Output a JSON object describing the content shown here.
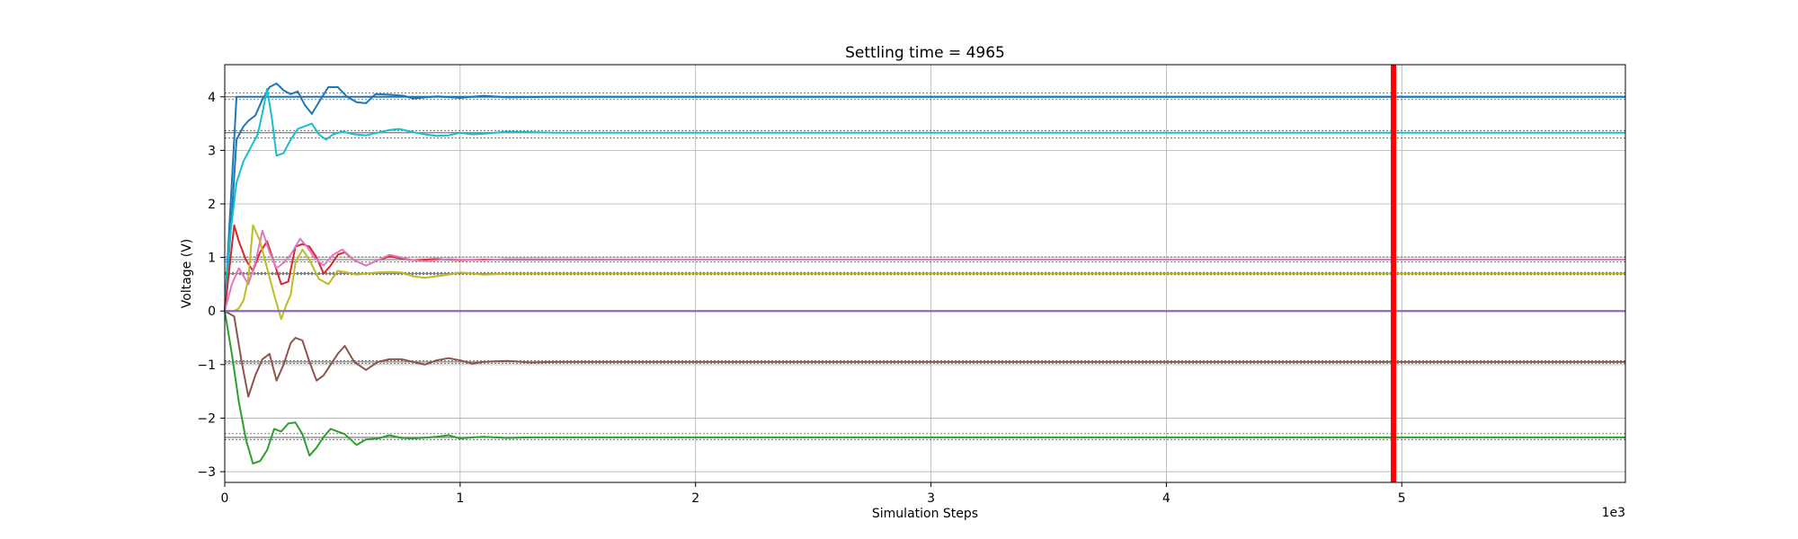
{
  "chart_data": {
    "type": "line",
    "title": "Settling time = 4965",
    "xlabel": "Simulation Steps",
    "ylabel": "Voltage (V)",
    "x_offset_label": "1e3",
    "xlim": [
      0,
      5950
    ],
    "ylim": [
      -3.2,
      4.6
    ],
    "x_ticks": [
      0,
      1000,
      2000,
      3000,
      4000,
      5000
    ],
    "x_tick_labels": [
      "0",
      "1",
      "2",
      "3",
      "4",
      "5"
    ],
    "y_ticks": [
      -3,
      -2,
      -1,
      0,
      1,
      2,
      3,
      4
    ],
    "y_tick_labels": [
      "−3",
      "−2",
      "−1",
      "0",
      "1",
      "2",
      "3",
      "4"
    ],
    "grid": true,
    "settling_time": 4965,
    "settling_color": "#ff0000",
    "reference_lines": [
      4.0,
      3.33,
      0.96,
      0.7,
      0.0,
      -0.95,
      -2.36
    ],
    "tolerance_bands": [
      [
        3.95,
        4.07
      ],
      [
        3.23,
        3.37
      ],
      [
        0.92,
        1.01
      ],
      [
        0.68,
        0.72
      ],
      [
        -0.98,
        -0.93
      ],
      [
        -2.4,
        -2.29
      ]
    ],
    "series": [
      {
        "color": "#1f77b4",
        "x": [
          0,
          30,
          50,
          80,
          100,
          130,
          160,
          190,
          220,
          250,
          280,
          310,
          340,
          370,
          400,
          440,
          480,
          520,
          560,
          600,
          640,
          700,
          760,
          800,
          900,
          1000,
          1100,
          1200,
          1400,
          1600,
          2000,
          3000,
          4000,
          5000,
          5950
        ],
        "values": [
          0,
          1.8,
          3.2,
          3.45,
          3.55,
          3.65,
          3.95,
          4.18,
          4.25,
          4.12,
          4.05,
          4.1,
          3.85,
          3.68,
          3.9,
          4.18,
          4.18,
          4.0,
          3.9,
          3.88,
          4.05,
          4.04,
          4.02,
          3.97,
          4.01,
          3.98,
          4.02,
          3.99,
          4.0,
          4.0,
          4.0,
          4.0,
          4.0,
          4.0,
          4.0
        ]
      },
      {
        "color": "#1f77b4",
        "x": [
          0,
          50,
          5950
        ],
        "values": [
          0,
          4.0,
          4.0
        ]
      },
      {
        "color": "#17becf",
        "x": [
          0,
          20,
          50,
          80,
          110,
          140,
          160,
          180,
          200,
          220,
          250,
          280,
          310,
          340,
          370,
          400,
          430,
          460,
          500,
          550,
          600,
          650,
          700,
          740,
          800,
          850,
          900,
          950,
          1000,
          1050,
          1100,
          1150,
          1200,
          1300,
          1400,
          1500,
          1600,
          2000,
          3000,
          4000,
          5000,
          5950
        ],
        "values": [
          0,
          1.3,
          2.4,
          2.8,
          3.05,
          3.3,
          3.7,
          4.15,
          3.6,
          2.9,
          2.95,
          3.2,
          3.4,
          3.45,
          3.5,
          3.3,
          3.2,
          3.3,
          3.35,
          3.3,
          3.28,
          3.33,
          3.38,
          3.4,
          3.34,
          3.3,
          3.27,
          3.28,
          3.33,
          3.3,
          3.31,
          3.33,
          3.35,
          3.34,
          3.33,
          3.33,
          3.33,
          3.33,
          3.33,
          3.33,
          3.33,
          3.33
        ]
      },
      {
        "color": "#2ca02c",
        "x": [
          0,
          30,
          60,
          90,
          120,
          150,
          180,
          210,
          240,
          270,
          300,
          330,
          360,
          390,
          420,
          450,
          480,
          510,
          560,
          600,
          650,
          700,
          750,
          800,
          900,
          950,
          1000,
          1050,
          1100,
          1200,
          1300,
          1400,
          2000,
          3000,
          4000,
          5000,
          5950
        ],
        "values": [
          0,
          -0.8,
          -1.7,
          -2.4,
          -2.85,
          -2.8,
          -2.6,
          -2.2,
          -2.25,
          -2.1,
          -2.08,
          -2.3,
          -2.7,
          -2.55,
          -2.35,
          -2.2,
          -2.25,
          -2.3,
          -2.5,
          -2.4,
          -2.38,
          -2.32,
          -2.37,
          -2.38,
          -2.35,
          -2.32,
          -2.38,
          -2.36,
          -2.35,
          -2.37,
          -2.36,
          -2.36,
          -2.36,
          -2.36,
          -2.36,
          -2.36,
          -2.36
        ]
      },
      {
        "color": "#8c564b",
        "x": [
          0,
          40,
          70,
          100,
          130,
          160,
          190,
          220,
          250,
          280,
          300,
          330,
          360,
          390,
          420,
          450,
          480,
          510,
          550,
          600,
          650,
          700,
          750,
          800,
          850,
          900,
          950,
          1000,
          1050,
          1100,
          1200,
          1300,
          1400,
          2000,
          3000,
          4000,
          5000,
          5950
        ],
        "values": [
          0,
          -0.1,
          -0.9,
          -1.6,
          -1.2,
          -0.9,
          -0.8,
          -1.3,
          -1.0,
          -0.6,
          -0.5,
          -0.55,
          -0.95,
          -1.3,
          -1.2,
          -1.0,
          -0.8,
          -0.65,
          -0.95,
          -1.1,
          -0.95,
          -0.9,
          -0.9,
          -0.95,
          -1.0,
          -0.92,
          -0.88,
          -0.92,
          -0.98,
          -0.95,
          -0.93,
          -0.96,
          -0.95,
          -0.95,
          -0.95,
          -0.95,
          -0.95,
          -0.95
        ]
      },
      {
        "color": "#d62728",
        "x": [
          0,
          20,
          40,
          60,
          90,
          120,
          150,
          180,
          210,
          240,
          270,
          300,
          330,
          360,
          390,
          420,
          450,
          480,
          510,
          550,
          600,
          650,
          700,
          750,
          800,
          900,
          1000,
          1100,
          1200,
          2000,
          3000,
          4000,
          5000,
          5950
        ],
        "values": [
          0,
          0.8,
          1.6,
          1.3,
          0.95,
          0.75,
          1.1,
          1.3,
          0.9,
          0.5,
          0.55,
          1.2,
          1.25,
          1.2,
          1.0,
          0.7,
          0.85,
          1.05,
          1.1,
          0.95,
          0.85,
          0.95,
          1.02,
          0.98,
          0.95,
          0.97,
          0.95,
          0.96,
          0.96,
          0.96,
          0.96,
          0.96,
          0.96,
          0.96
        ]
      },
      {
        "color": "#e377c2",
        "x": [
          0,
          30,
          60,
          100,
          130,
          160,
          190,
          220,
          250,
          280,
          320,
          350,
          380,
          420,
          460,
          500,
          550,
          600,
          650,
          700,
          750,
          800,
          850,
          900,
          950,
          1000,
          1100,
          1200,
          2000,
          3000,
          4000,
          5000,
          5950
        ],
        "values": [
          0,
          0.5,
          0.8,
          0.5,
          0.9,
          1.5,
          1.1,
          0.8,
          0.9,
          1.05,
          1.35,
          1.2,
          1.0,
          0.85,
          1.05,
          1.15,
          0.95,
          0.85,
          0.95,
          1.05,
          1.0,
          0.95,
          0.93,
          0.95,
          0.97,
          0.96,
          0.95,
          0.97,
          0.96,
          0.96,
          0.96,
          0.96,
          0.96
        ]
      },
      {
        "color": "#bcbd22",
        "x": [
          0,
          40,
          60,
          80,
          100,
          120,
          150,
          180,
          210,
          240,
          260,
          280,
          300,
          330,
          360,
          400,
          440,
          480,
          520,
          560,
          600,
          650,
          700,
          750,
          800,
          850,
          900,
          950,
          1000,
          1050,
          1100,
          1200,
          2000,
          3000,
          4000,
          5000,
          5950
        ],
        "values": [
          0,
          0,
          0.05,
          0.2,
          0.6,
          1.6,
          1.3,
          0.8,
          0.3,
          -0.15,
          0.1,
          0.3,
          0.9,
          1.15,
          0.95,
          0.6,
          0.5,
          0.75,
          0.72,
          0.68,
          0.7,
          0.72,
          0.73,
          0.72,
          0.65,
          0.62,
          0.65,
          0.68,
          0.72,
          0.7,
          0.68,
          0.7,
          0.7,
          0.7,
          0.7,
          0.7,
          0.7
        ]
      },
      {
        "color": "#7f7f7f",
        "x": [
          0,
          5950
        ],
        "values": [
          0,
          0
        ]
      },
      {
        "color": "#9467bd",
        "x": [
          0,
          5950
        ],
        "values": [
          0,
          0
        ]
      }
    ]
  }
}
